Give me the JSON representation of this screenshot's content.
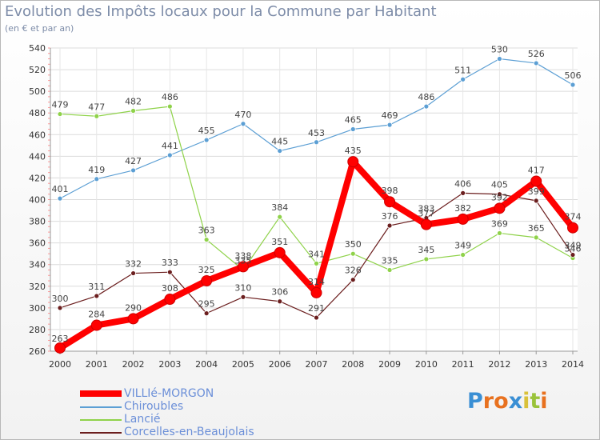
{
  "title": "Evolution des Impôts locaux pour la Commune par Habitant",
  "subtitle": "(en € et par an)",
  "logo": {
    "letters": [
      "P",
      "r",
      "o",
      "x",
      "i",
      "t",
      "i"
    ],
    "colors": [
      "#3a8fd4",
      "#e8711f",
      "#e8711f",
      "#3a8fd4",
      "#d9c13a",
      "#9ac33a",
      "#e8711f"
    ]
  },
  "chart_data": {
    "type": "line",
    "title": "Evolution des Impôts locaux pour la Commune par Habitant",
    "subtitle": "(en € et par an)",
    "xlabel": "",
    "ylabel": "",
    "categories": [
      "2000",
      "2001",
      "2002",
      "2003",
      "2004",
      "2005",
      "2006",
      "2007",
      "2008",
      "2009",
      "2010",
      "2011",
      "2012",
      "2013",
      "2014"
    ],
    "yticks": [
      "260",
      "280",
      "300",
      "320",
      "340",
      "360",
      "380",
      "400",
      "420",
      "440",
      "460",
      "480",
      "500",
      "520",
      "540"
    ],
    "ylim": [
      260,
      540
    ],
    "grid": true,
    "legend_position": "bottom-left",
    "series": [
      {
        "name": "Chiroubles",
        "color": "#5c9fd4",
        "values": [
          401,
          419,
          427,
          441,
          455,
          470,
          445,
          453,
          465,
          469,
          486,
          511,
          530,
          526,
          506
        ]
      },
      {
        "name": "Lancié",
        "color": "#8fd24a",
        "values": [
          479,
          477,
          482,
          486,
          363,
          335,
          384,
          341,
          350,
          335,
          345,
          349,
          369,
          365,
          346
        ]
      },
      {
        "name": "Corcelles-en-Beaujolais",
        "color": "#6b1e1e",
        "values": [
          300,
          311,
          332,
          333,
          295,
          310,
          306,
          291,
          326,
          376,
          383,
          406,
          405,
          399,
          349
        ]
      },
      {
        "name": "VILLIé-MORGON",
        "color": "#ff0000",
        "values": [
          263,
          284,
          290,
          308,
          325,
          338,
          351,
          314,
          435,
          398,
          377,
          382,
          392,
          417,
          374
        ]
      }
    ],
    "legend": [
      "VILLIé-MORGON",
      "Chiroubles",
      "Lancié",
      "Corcelles-en-Beaujolais"
    ]
  }
}
